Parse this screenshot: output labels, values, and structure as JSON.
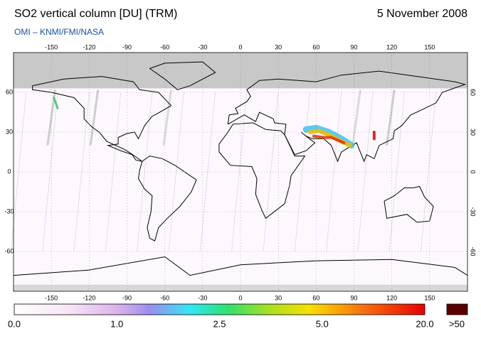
{
  "header": {
    "title": "SO2 vertical column [DU] (TRM)",
    "date": "5 November 2008",
    "credit": "OMI  –  KNMI/FMI/NASA"
  },
  "map": {
    "lon_ticks": [
      -150,
      -120,
      -90,
      -60,
      -30,
      0,
      30,
      60,
      90,
      120,
      150
    ],
    "lat_ticks": [
      60,
      30,
      0,
      -30,
      -60
    ]
  },
  "colorbar": {
    "labels": [
      "0.0",
      "1.0",
      "2.5",
      "5.0",
      "20.0"
    ],
    "overflow": ">50"
  }
}
